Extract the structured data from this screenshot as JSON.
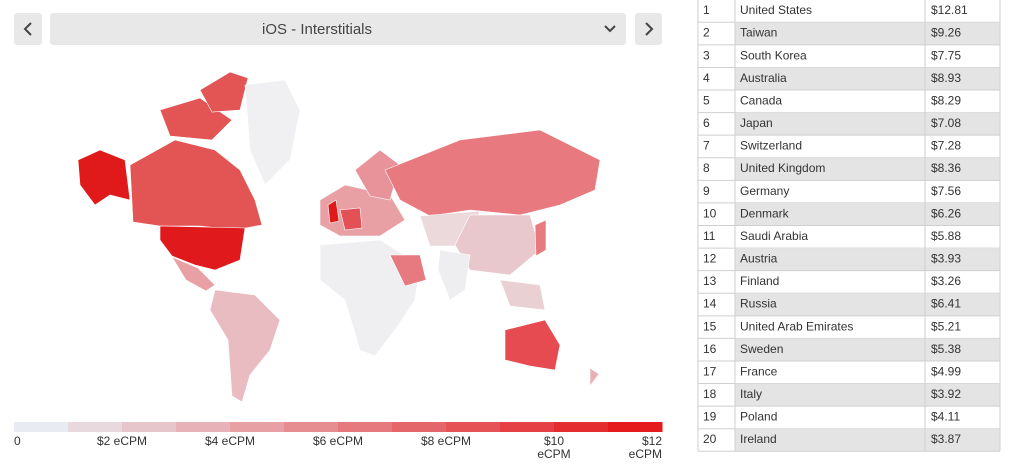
{
  "header": {
    "title": "iOS - Interstitials"
  },
  "legend": {
    "range": [
      0,
      12
    ],
    "ticks": [
      {
        "value": 0,
        "label": "0"
      },
      {
        "value": 2,
        "label": "$2 eCPM"
      },
      {
        "value": 4,
        "label": "$4 eCPM"
      },
      {
        "value": 6,
        "label": "$6 eCPM"
      },
      {
        "value": 8,
        "label": "$8 eCPM"
      },
      {
        "value": 10,
        "label": "$10 eCPM"
      },
      {
        "value": 12,
        "label": "$12 eCPM"
      }
    ]
  },
  "table": {
    "rows": [
      [
        1,
        "United States",
        "$12.81"
      ],
      [
        2,
        "Taiwan",
        "$9.26"
      ],
      [
        3,
        "South Korea",
        "$7.75"
      ],
      [
        4,
        "Australia",
        "$8.93"
      ],
      [
        5,
        "Canada",
        "$8.29"
      ],
      [
        6,
        "Japan",
        "$7.08"
      ],
      [
        7,
        "Switzerland",
        "$7.28"
      ],
      [
        8,
        "United Kingdom",
        "$8.36"
      ],
      [
        9,
        "Germany",
        "$7.56"
      ],
      [
        10,
        "Denmark",
        "$6.26"
      ],
      [
        11,
        "Saudi Arabia",
        "$5.88"
      ],
      [
        12,
        "Austria",
        "$3.93"
      ],
      [
        13,
        "Finland",
        "$3.26"
      ],
      [
        14,
        "Russia",
        "$6.41"
      ],
      [
        15,
        "United Arab Emirates",
        "$5.21"
      ],
      [
        16,
        "Sweden",
        "$5.38"
      ],
      [
        17,
        "France",
        "$4.99"
      ],
      [
        18,
        "Italy",
        "$3.92"
      ],
      [
        19,
        "Poland",
        "$4.11"
      ],
      [
        20,
        "Ireland",
        "$3.87"
      ]
    ]
  }
}
